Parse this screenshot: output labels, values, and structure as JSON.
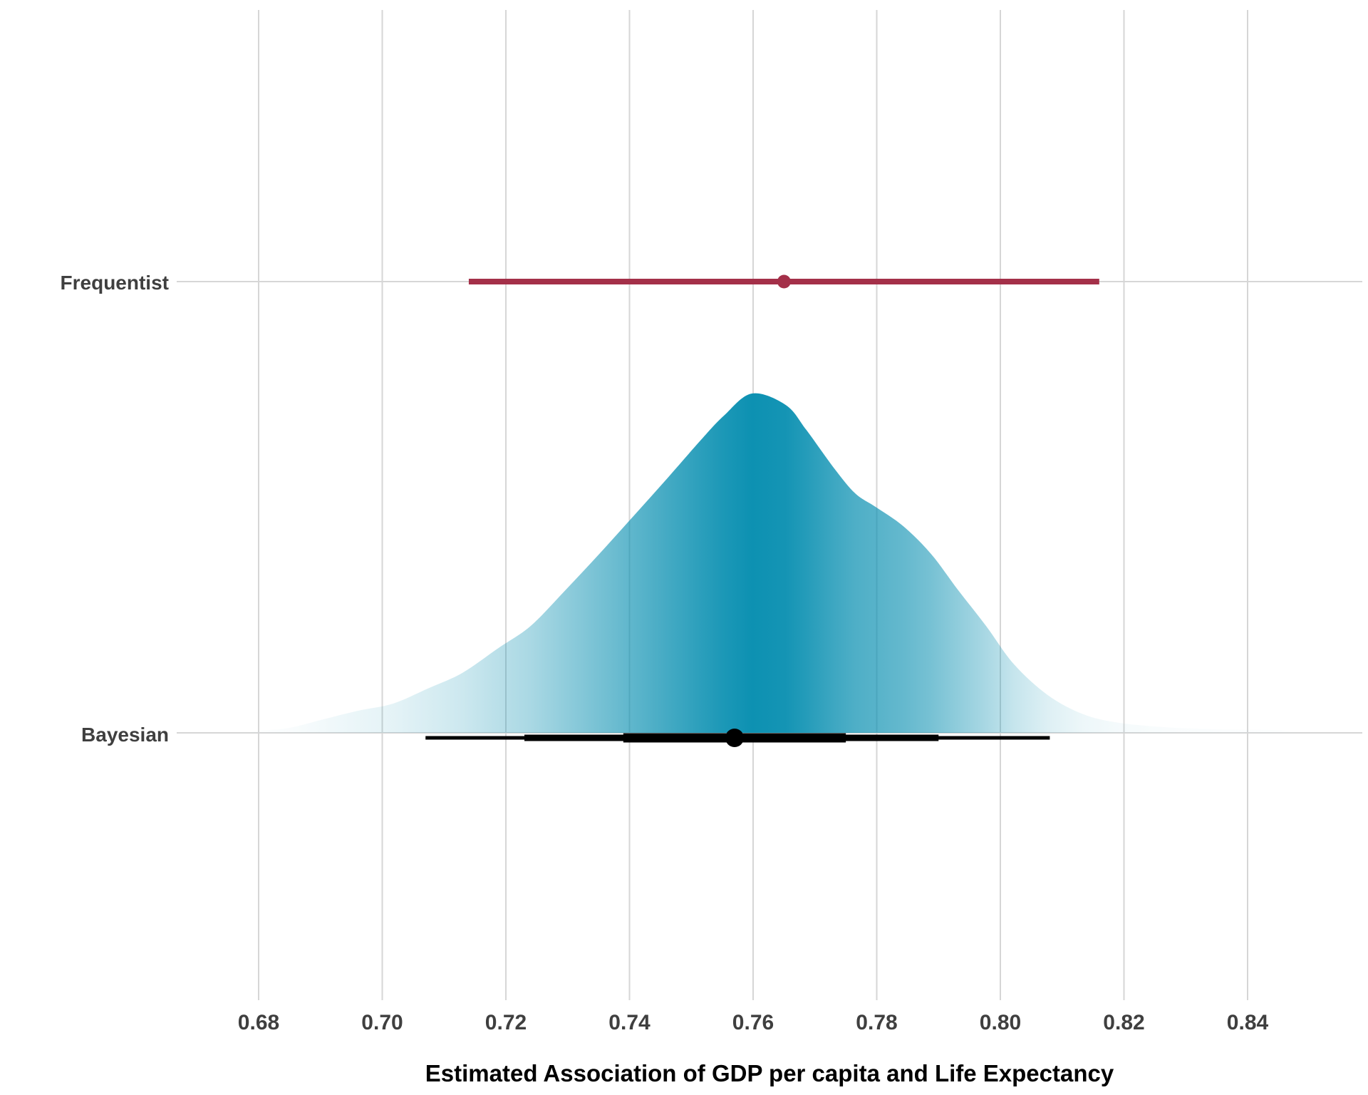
{
  "chart_data": {
    "type": "interval",
    "subtype": "point-interval vs half-eye posterior comparison",
    "title": "",
    "xlabel": "Estimated Association of GDP per capita and Life Expectancy",
    "ylabel": "",
    "x_axis": {
      "ticks": [
        0.68,
        0.7,
        0.72,
        0.74,
        0.76,
        0.78,
        0.8,
        0.82,
        0.84
      ],
      "tick_labels": [
        "0.68",
        "0.70",
        "0.72",
        "0.74",
        "0.76",
        "0.78",
        "0.80",
        "0.82",
        "0.84"
      ],
      "visible_range": [
        0.666,
        0.858
      ],
      "grid": true
    },
    "y_axis": {
      "categories": [
        "Frequentist",
        "Bayesian"
      ]
    },
    "rows": [
      {
        "label": "Frequentist",
        "kind": "pointinterval",
        "estimate": 0.765,
        "interval": [
          0.714,
          0.816
        ],
        "color": "#A43049"
      },
      {
        "label": "Bayesian",
        "kind": "halfeye-density",
        "point_estimate": 0.757,
        "intervals": [
          {
            "width": 0.95,
            "range": [
              0.707,
              0.808
            ]
          },
          {
            "width": 0.8,
            "range": [
              0.723,
              0.79
            ]
          },
          {
            "width": 0.5,
            "range": [
              0.739,
              0.775
            ]
          }
        ],
        "point_color": "#000000",
        "slab_color": "#0D91B2",
        "density": [
          [
            0.6755,
            0.0
          ],
          [
            0.68,
            0.006
          ],
          [
            0.685,
            0.015
          ],
          [
            0.6905,
            0.04
          ],
          [
            0.696,
            0.065
          ],
          [
            0.7017,
            0.086
          ],
          [
            0.7073,
            0.13
          ],
          [
            0.7129,
            0.176
          ],
          [
            0.7188,
            0.25
          ],
          [
            0.724,
            0.315
          ],
          [
            0.7296,
            0.42
          ],
          [
            0.7351,
            0.527
          ],
          [
            0.7407,
            0.64
          ],
          [
            0.7463,
            0.754
          ],
          [
            0.7519,
            0.87
          ],
          [
            0.7553,
            0.935
          ],
          [
            0.7598,
            1.0
          ],
          [
            0.7653,
            0.966
          ],
          [
            0.7686,
            0.893
          ],
          [
            0.7731,
            0.78
          ],
          [
            0.7765,
            0.706
          ],
          [
            0.7798,
            0.666
          ],
          [
            0.7843,
            0.609
          ],
          [
            0.7888,
            0.527
          ],
          [
            0.7932,
            0.42
          ],
          [
            0.7977,
            0.315
          ],
          [
            0.8022,
            0.202
          ],
          [
            0.8077,
            0.111
          ],
          [
            0.8134,
            0.055
          ],
          [
            0.8191,
            0.03
          ],
          [
            0.8272,
            0.016
          ],
          [
            0.8364,
            0.01
          ],
          [
            0.8445,
            0.008
          ],
          [
            0.8491,
            0.0
          ]
        ]
      }
    ],
    "style": {
      "gridline_color": "#D6D6D6",
      "axis_text_color": "#3F3F3F",
      "axis_title_color": "#000000",
      "background": "#FFFFFF"
    },
    "legend": null
  }
}
